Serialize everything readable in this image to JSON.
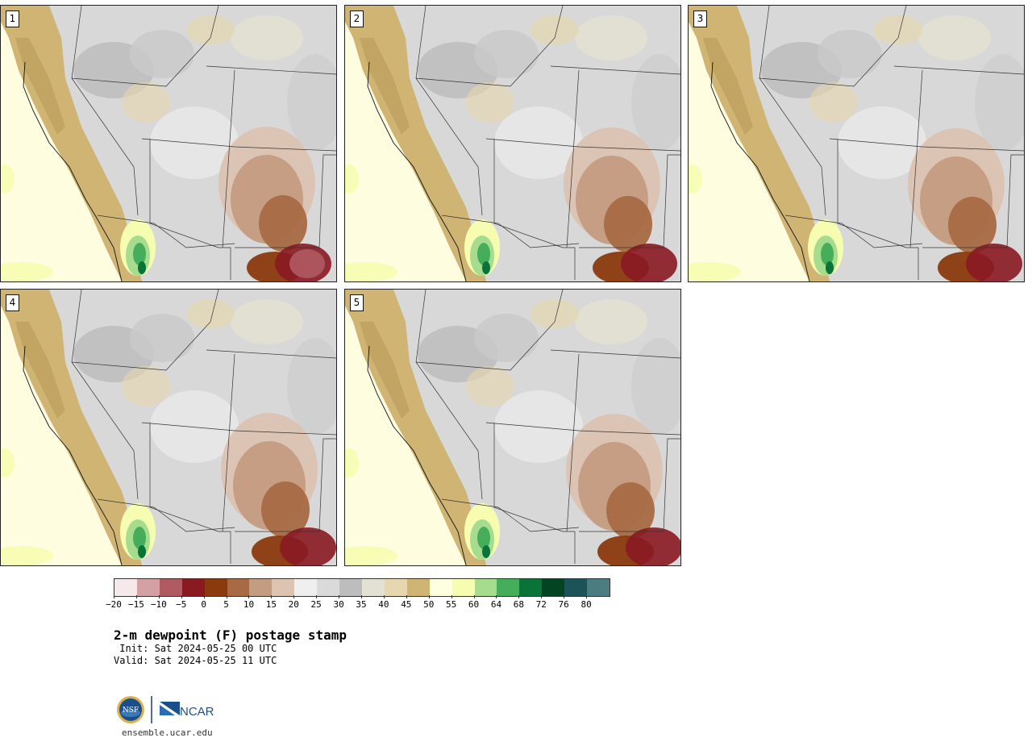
{
  "panels": [
    {
      "number": "1",
      "variant": 0
    },
    {
      "number": "2",
      "variant": 1
    },
    {
      "number": "3",
      "variant": 2
    },
    {
      "number": "4",
      "variant": 3
    },
    {
      "number": "5",
      "variant": 4
    }
  ],
  "colorbar": {
    "colors": [
      "#f5e9e9",
      "#d3a0a4",
      "#b05a62",
      "#8a1a22",
      "#8b3a0e",
      "#a86a45",
      "#c49c82",
      "#dcc3b2",
      "#efefef",
      "#dadada",
      "#bdbdbd",
      "#e2e1d2",
      "#e6d7ae",
      "#cfb474",
      "#fefee0",
      "#f7fdb0",
      "#a6dc8e",
      "#46ad5a",
      "#0a7438",
      "#034423",
      "#1c5358",
      "#4a7c80"
    ],
    "tick_labels": [
      "−20",
      "−15",
      "−10",
      "−5",
      "0",
      "5",
      "10",
      "15",
      "20",
      "25",
      "30",
      "35",
      "40",
      "45",
      "50",
      "55",
      "60",
      "64",
      "68",
      "72",
      "76",
      "80"
    ]
  },
  "title": "2-m dewpoint (F) postage stamp",
  "init_line": " Init: Sat 2024-05-25 00 UTC",
  "valid_line": "Valid: Sat 2024-05-25 11 UTC",
  "logo": {
    "nsf_text": "NSF",
    "ncar_text": "NCAR"
  },
  "website": "ensemble.ucar.edu",
  "colors": {
    "ocean": "#fefee0",
    "coast_tan": "#cfb474",
    "gray_land": "#bdbdbd",
    "brown": "#a86a45",
    "maroon": "#8a1a22",
    "green": "#46ad5a"
  }
}
